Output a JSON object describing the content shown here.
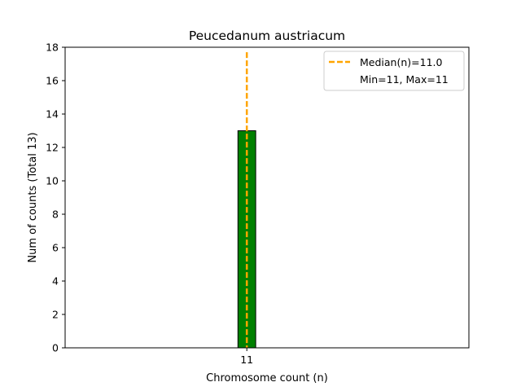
{
  "chart_data": {
    "type": "bar",
    "title": "Peucedanum austriacum",
    "xlabel": "Chromosome count (n)",
    "ylabel": "Num of counts      (Total 13)",
    "categories": [
      "11"
    ],
    "values": [
      13
    ],
    "ylim": [
      0,
      18
    ],
    "yticks": [
      0,
      2,
      4,
      6,
      8,
      10,
      12,
      14,
      16,
      18
    ],
    "xticks": [
      11
    ],
    "median": 11.0,
    "legend": {
      "placement": "top-right",
      "entries": [
        "Median(n)=11.0",
        "Min=11, Max=11"
      ]
    },
    "colors": {
      "bar": "#008000",
      "bar_edge": "#000000",
      "median_line": "#FFA500"
    },
    "grid": false
  }
}
